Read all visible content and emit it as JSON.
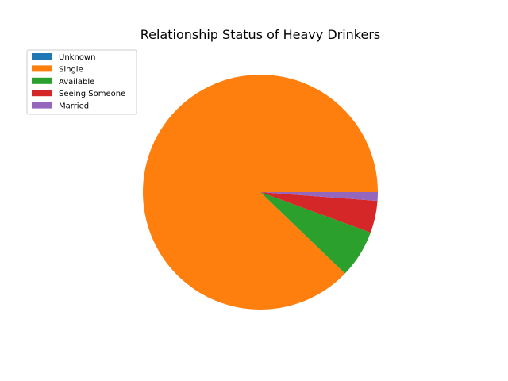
{
  "chart_data": {
    "type": "pie",
    "title": "Relationship Status of Heavy Drinkers",
    "legend_position": "upper-left",
    "start_angle": 0,
    "direction": "counterclockwise",
    "slices": [
      {
        "label": "Unknown",
        "value": 0.0,
        "color": "#1f77b4"
      },
      {
        "label": "Single",
        "value": 87.8,
        "color": "#ff7f0e"
      },
      {
        "label": "Available",
        "value": 6.6,
        "color": "#2ca02c"
      },
      {
        "label": "Seeing Someone",
        "value": 4.4,
        "color": "#d62728"
      },
      {
        "label": "Married",
        "value": 1.2,
        "color": "#9467bd"
      }
    ]
  }
}
